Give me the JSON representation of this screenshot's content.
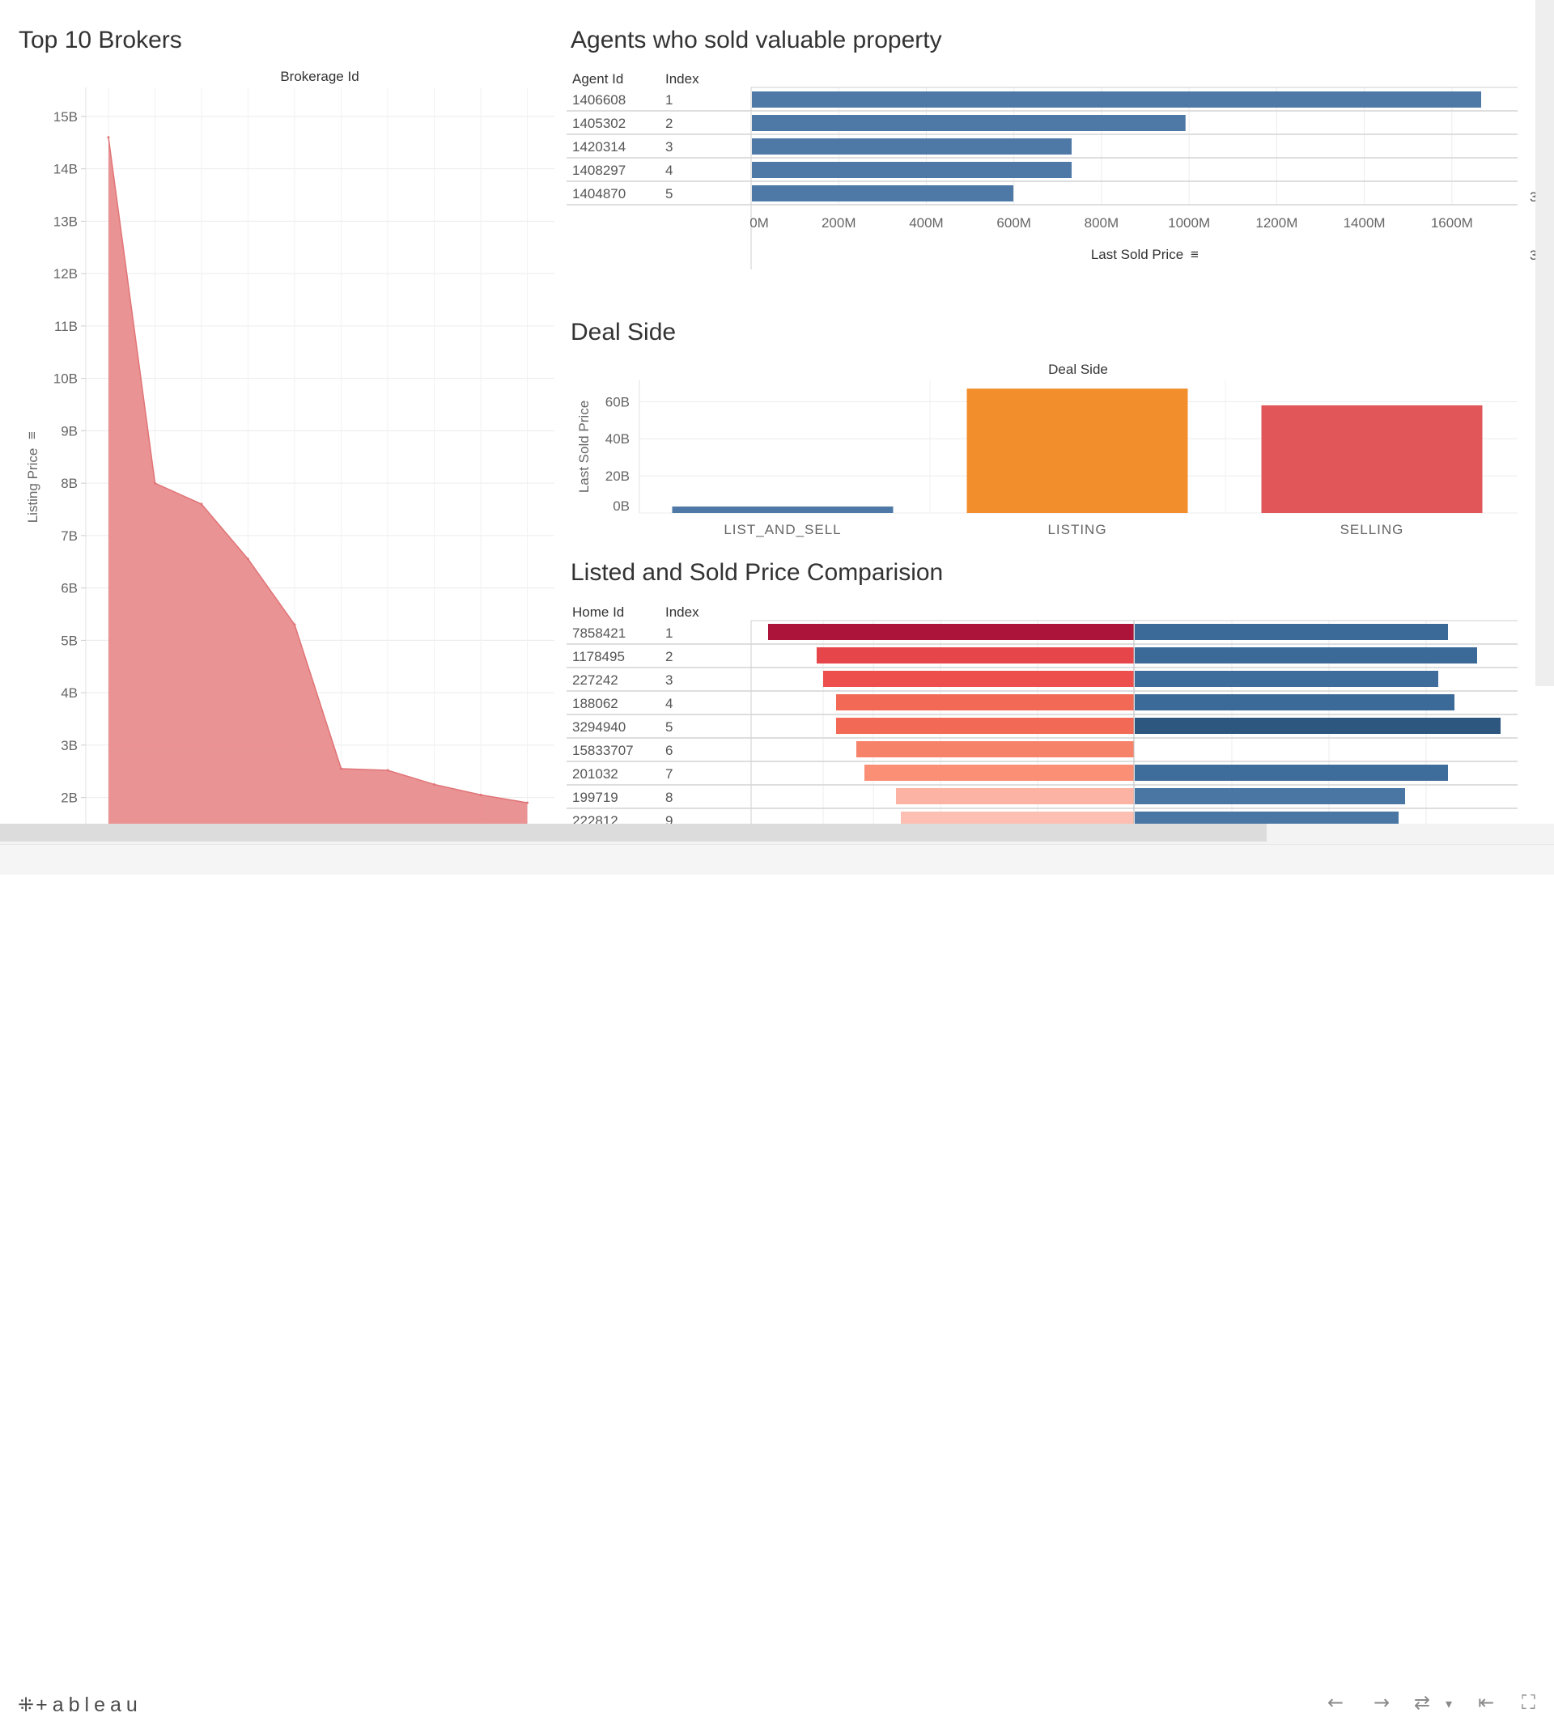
{
  "footer": {
    "brand": "+ableau",
    "brand_mark": "⁜",
    "undo_icon": "←",
    "redo_icon": "→",
    "revert_icon": "⇄",
    "menu_icon": "▾",
    "first_icon": "⇤",
    "fullscreen_icon": "⛶"
  },
  "charts": {
    "brokers": {
      "title": "Top 10 Brokers",
      "header": "Brokerage Id",
      "ylabel": "Listing Price",
      "sort_icon": "≡",
      "yticks": [
        "15B",
        "14B",
        "13B",
        "12B",
        "11B",
        "10B",
        "9B",
        "8B",
        "7B",
        "6B",
        "5B",
        "4B",
        "3B",
        "2B"
      ]
    },
    "agents": {
      "title": "Agents who sold valuable property",
      "col1": "Agent Id",
      "col2": "Index",
      "xlabel": "Last Sold Price",
      "sort_icon": "≡",
      "xticks": [
        "0M",
        "200M",
        "400M",
        "600M",
        "800M",
        "1000M",
        "1200M",
        "1400M",
        "1600M"
      ],
      "side_texts": [
        "3",
        "3"
      ]
    },
    "deal": {
      "title": "Deal Side",
      "header": "Deal Side",
      "ylabel": "Last Sold Price",
      "yticks": [
        "60B",
        "40B",
        "20B",
        "0B"
      ]
    },
    "compare": {
      "title": "Listed and Sold Price Comparision",
      "col1": "Home Id",
      "col2": "Index"
    }
  },
  "chart_data": [
    {
      "type": "area",
      "title": "Top 10 Brokers",
      "xlabel": "Brokerage Id",
      "ylabel": "Listing Price",
      "ylim": [
        1.5,
        15.4
      ],
      "unit": "B",
      "values": [
        14.6,
        8.0,
        7.6,
        6.55,
        5.3,
        2.55,
        2.52,
        2.25,
        2.05,
        1.9
      ],
      "color": "#e88a8c"
    },
    {
      "type": "bar",
      "orientation": "horizontal",
      "title": "Agents who sold valuable property",
      "xlabel": "Last Sold Price",
      "xlim": [
        0,
        1750
      ],
      "unit": "M",
      "rows": [
        {
          "id": "1406608",
          "index": "1",
          "value": 1665
        },
        {
          "id": "1405302",
          "index": "2",
          "value": 990
        },
        {
          "id": "1420314",
          "index": "3",
          "value": 730
        },
        {
          "id": "1408297",
          "index": "4",
          "value": 730
        },
        {
          "id": "1404870",
          "index": "5",
          "value": 597
        }
      ],
      "color": "#4e79a7"
    },
    {
      "type": "bar",
      "title": "Deal Side",
      "xlabel": "Deal Side",
      "ylabel": "Last Sold Price",
      "ylim": [
        0,
        68
      ],
      "unit": "B",
      "categories": [
        "LIST_AND_SELL",
        "LISTING",
        "SELLING"
      ],
      "values": [
        3.5,
        67,
        58
      ],
      "colors": [
        "#4e79a7",
        "#f28e2b",
        "#e15759"
      ]
    },
    {
      "type": "bar",
      "orientation": "diverging",
      "title": "Listed and Sold Price Comparision",
      "rows": [
        {
          "id": "7858421",
          "index": "1",
          "left": 452,
          "right": 387,
          "left_color": "#ad143a",
          "right_color": "#3b6a98"
        },
        {
          "id": "1178495",
          "index": "2",
          "left": 392,
          "right": 423,
          "left_color": "#e6454a",
          "right_color": "#3b6a98"
        },
        {
          "id": "227242",
          "index": "3",
          "left": 384,
          "right": 375,
          "left_color": "#ec4f4c",
          "right_color": "#3e6d9b"
        },
        {
          "id": "188062",
          "index": "4",
          "left": 368,
          "right": 395,
          "left_color": "#f26a55",
          "right_color": "#3b6a98"
        },
        {
          "id": "3294940",
          "index": "5",
          "left": 368,
          "right": 452,
          "left_color": "#f26a55",
          "right_color": "#2d577f"
        },
        {
          "id": "15833707",
          "index": "6",
          "left": 343,
          "right": 0,
          "left_color": "#f7826a",
          "right_color": "#4e79a7"
        },
        {
          "id": "201032",
          "index": "7",
          "left": 333,
          "right": 387,
          "left_color": "#fa8f76",
          "right_color": "#3e6d9b"
        },
        {
          "id": "199719",
          "index": "8",
          "left": 294,
          "right": 334,
          "left_color": "#fdb3a4",
          "right_color": "#4a76a4"
        },
        {
          "id": "222812",
          "index": "9",
          "left": 288,
          "right": 326,
          "left_color": "#fdbfb2",
          "right_color": "#4a76a4"
        }
      ]
    }
  ]
}
